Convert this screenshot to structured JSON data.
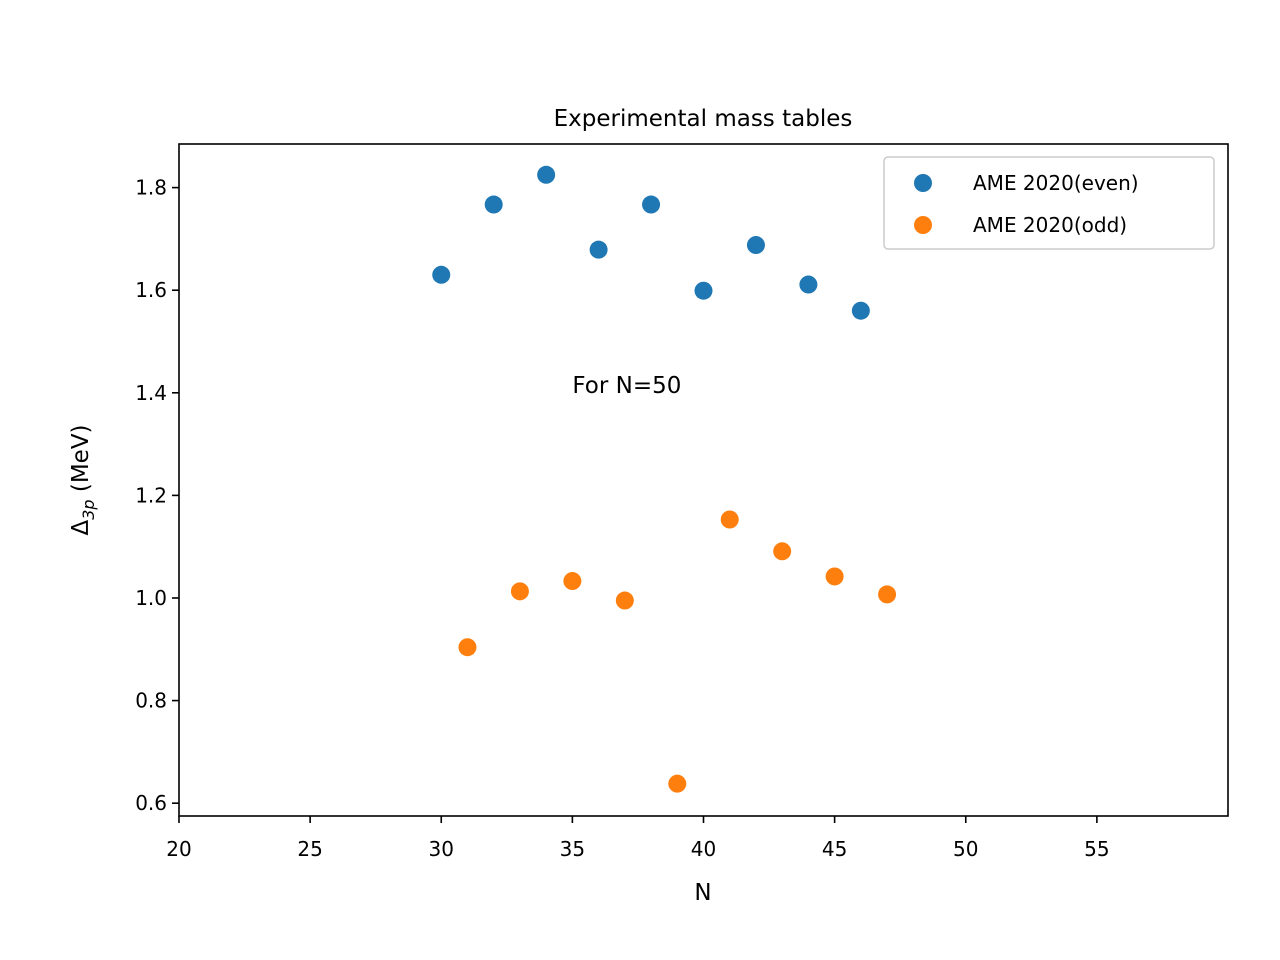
{
  "chart_data": {
    "type": "scatter",
    "title": "Experimental mass tables",
    "xlabel": "N",
    "ylabel": {
      "base": "Δ",
      "sub": "3p",
      "rest": " (MeV)"
    },
    "xlim": [
      20,
      60
    ],
    "ylim": [
      0.575,
      1.885
    ],
    "xticks": [
      20,
      25,
      30,
      35,
      40,
      45,
      50,
      55
    ],
    "yticks": [
      0.6,
      0.8,
      1.0,
      1.2,
      1.4,
      1.6,
      1.8
    ],
    "grid": false,
    "legend_position": "top-right",
    "annotation": {
      "text": "For N=50",
      "x": 35,
      "y": 1.4
    },
    "series": [
      {
        "name": "AME 2020(even)",
        "color": "#1f77b4",
        "x": [
          30,
          32,
          34,
          36,
          38,
          40,
          42,
          44,
          46
        ],
        "y": [
          1.63,
          1.767,
          1.825,
          1.679,
          1.767,
          1.599,
          1.688,
          1.611,
          1.56
        ]
      },
      {
        "name": "AME 2020(odd)",
        "color": "#ff7f0e",
        "x": [
          31,
          33,
          35,
          37,
          39,
          41,
          43,
          45,
          47
        ],
        "y": [
          0.904,
          1.013,
          1.033,
          0.995,
          0.638,
          1.153,
          1.091,
          1.042,
          1.007
        ]
      }
    ]
  }
}
